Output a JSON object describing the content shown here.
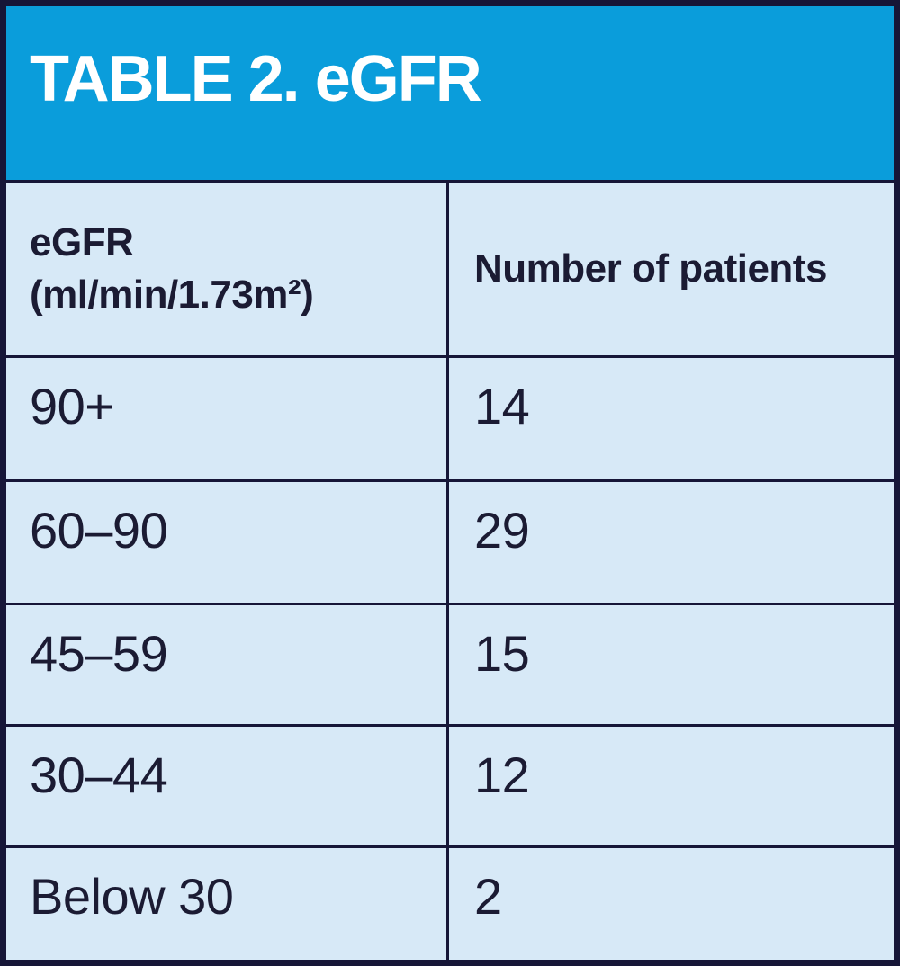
{
  "figure": {
    "title": "TABLE 2. eGFR"
  },
  "table": {
    "header": {
      "col1_line1": "eGFR",
      "col1_line2": "(ml/min/1.73m²)",
      "col2": "Number of patients"
    },
    "rows": [
      {
        "egfr": "90+",
        "patients": "14"
      },
      {
        "egfr": "60–90",
        "patients": "29"
      },
      {
        "egfr": "45–59",
        "patients": "15"
      },
      {
        "egfr": "30–44",
        "patients": "12"
      },
      {
        "egfr": "Below 30",
        "patients": "2"
      }
    ]
  },
  "colors": {
    "title_band_blue": "#0A9DDB",
    "cell_light_blue": "#D7E9F7",
    "grid_navy": "#161638",
    "text_dark_navy": "#1B1B33",
    "title_text_white": "#FFFFFF"
  },
  "chart_data": {
    "type": "table",
    "title": "TABLE 2. eGFR",
    "columns": [
      "eGFR (ml/min/1.73m²)",
      "Number of patients"
    ],
    "categories": [
      "90+",
      "60–90",
      "45–59",
      "30–44",
      "Below 30"
    ],
    "values": [
      14,
      29,
      15,
      12,
      2
    ]
  }
}
